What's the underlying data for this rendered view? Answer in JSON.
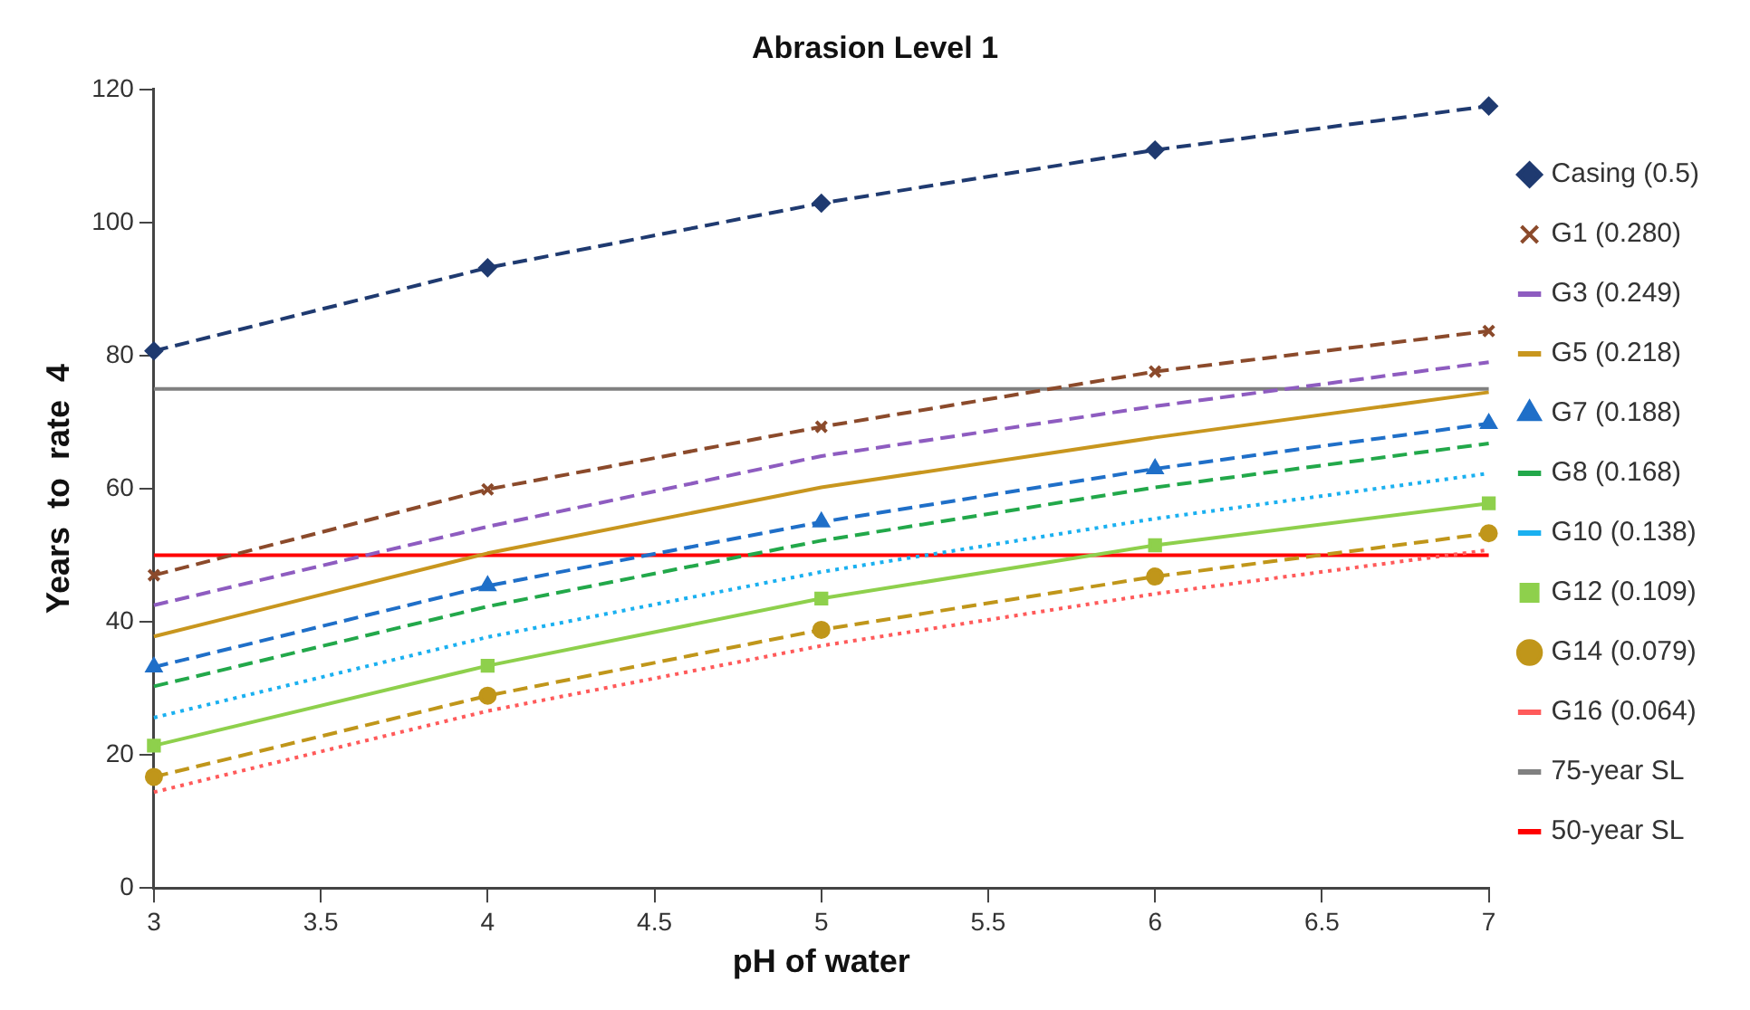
{
  "chart_data": {
    "type": "line",
    "title": "Abrasion Level 1",
    "xlabel": "pH of water",
    "ylabel": "Years  to  rate  4",
    "x": [
      3,
      4,
      5,
      6,
      7
    ],
    "xlim": [
      3,
      7
    ],
    "xticks": [
      3,
      3.5,
      4,
      4.5,
      5,
      5.5,
      6,
      6.5,
      7
    ],
    "ylim": [
      0,
      120
    ],
    "yticks": [
      0,
      20,
      40,
      60,
      80,
      100,
      120
    ],
    "grid": false,
    "legend": "right",
    "series": [
      {
        "name": "Casing (0.5)",
        "color": "#1f3a70",
        "marker": "diamond",
        "line_style": "dashed",
        "values": [
          80.7,
          93.2,
          102.9,
          110.9,
          117.5
        ]
      },
      {
        "name": "G1 (0.280)",
        "color": "#8b4a2b",
        "marker": "cross",
        "line_style": "dashed",
        "values": [
          47.0,
          59.9,
          69.3,
          77.6,
          83.7
        ]
      },
      {
        "name": "G3 (0.249)",
        "color": "#8e5cc0",
        "marker": "none",
        "line_style": "dashed",
        "values": [
          42.5,
          54.3,
          64.9,
          72.4,
          79.0
        ]
      },
      {
        "name": "G5 (0.218)",
        "color": "#c8961e",
        "marker": "none",
        "line_style": "solid",
        "values": [
          37.8,
          50.3,
          60.2,
          67.7,
          74.5
        ]
      },
      {
        "name": "G7 (0.188)",
        "color": "#1f6fc8",
        "marker": "triangle",
        "line_style": "dashed",
        "values": [
          33.2,
          45.4,
          55.0,
          63.0,
          69.8
        ]
      },
      {
        "name": "G8 (0.168)",
        "color": "#22a84a",
        "marker": "none",
        "line_style": "dashed",
        "values": [
          30.3,
          42.3,
          52.2,
          60.2,
          66.8
        ]
      },
      {
        "name": "G10 (0.138)",
        "color": "#1ab0f0",
        "marker": "none",
        "line_style": "dotted",
        "values": [
          25.6,
          37.7,
          47.5,
          55.5,
          62.3
        ]
      },
      {
        "name": "G12 (0.109)",
        "color": "#8ed04c",
        "marker": "square",
        "line_style": "solid",
        "values": [
          21.4,
          33.4,
          43.5,
          51.5,
          57.8
        ]
      },
      {
        "name": "G14 (0.079)",
        "color": "#c0961a",
        "marker": "circle",
        "line_style": "dashed",
        "values": [
          16.7,
          28.9,
          38.8,
          46.8,
          53.3
        ]
      },
      {
        "name": "G16 (0.064)",
        "color": "#ff5a5a",
        "marker": "none",
        "line_style": "dotted",
        "values": [
          14.4,
          26.6,
          36.4,
          44.2,
          50.8
        ]
      },
      {
        "name": "75-year SL",
        "color": "#808080",
        "marker": "none",
        "line_style": "solid",
        "values": [
          75,
          75,
          75,
          75,
          75
        ]
      },
      {
        "name": "50-year SL",
        "color": "#ff0000",
        "marker": "none",
        "line_style": "solid",
        "values": [
          50,
          50,
          50,
          50,
          50
        ]
      }
    ]
  }
}
